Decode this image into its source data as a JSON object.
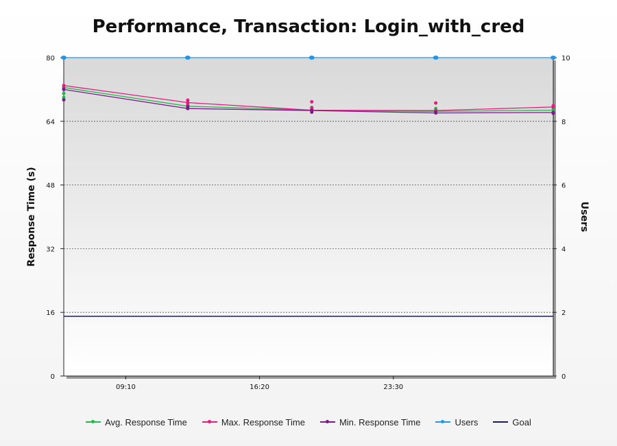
{
  "chart_data": {
    "type": "line",
    "title": "Performance, Transaction: Login_with_cred",
    "xlabel": "",
    "ylabel": "Response Time (s)",
    "y2label": "Users",
    "x_ticks": [
      "09:10",
      "16:20",
      "23:30"
    ],
    "x_tick_positions": [
      1.65,
      3.7,
      5.75
    ],
    "xlim": [
      0.7,
      8.2
    ],
    "ylim": [
      0,
      80
    ],
    "y_ticks": [
      0,
      16,
      32,
      48,
      64,
      80
    ],
    "y2lim": [
      0,
      10
    ],
    "y2_ticks": [
      0,
      2,
      4,
      6,
      8,
      10
    ],
    "grid": true,
    "legend_position": "bottom",
    "series": [
      {
        "name": "Avg. Response Time",
        "axis": "left",
        "color": "#22b84a",
        "points": [
          {
            "x": 0.7,
            "y": 72.5
          },
          {
            "x": 2.6,
            "y": 67.8
          },
          {
            "x": 4.5,
            "y": 66.8
          },
          {
            "x": 6.4,
            "y": 66.5
          },
          {
            "x": 8.2,
            "y": 66.8
          }
        ],
        "extra_markers": [
          {
            "x": 0.7,
            "y": 71.0
          },
          {
            "x": 0.7,
            "y": 70.0
          },
          {
            "x": 2.6,
            "y": 68.5
          },
          {
            "x": 4.5,
            "y": 67.5
          },
          {
            "x": 6.4,
            "y": 67.2
          },
          {
            "x": 8.2,
            "y": 67.3
          }
        ]
      },
      {
        "name": "Max. Response Time",
        "axis": "left",
        "color": "#e5197e",
        "points": [
          {
            "x": 0.7,
            "y": 73.0
          },
          {
            "x": 2.6,
            "y": 68.7
          },
          {
            "x": 4.5,
            "y": 66.8
          },
          {
            "x": 6.4,
            "y": 66.7
          },
          {
            "x": 8.2,
            "y": 67.6
          }
        ],
        "extra_markers": [
          {
            "x": 0.7,
            "y": 72.3
          },
          {
            "x": 2.6,
            "y": 69.3
          },
          {
            "x": 2.6,
            "y": 68.0
          },
          {
            "x": 4.5,
            "y": 68.9
          },
          {
            "x": 4.5,
            "y": 67.3
          },
          {
            "x": 6.4,
            "y": 68.6
          },
          {
            "x": 8.2,
            "y": 67.9
          }
        ]
      },
      {
        "name": "Min. Response Time",
        "axis": "left",
        "color": "#7a1b8c",
        "points": [
          {
            "x": 0.7,
            "y": 72.0
          },
          {
            "x": 2.6,
            "y": 67.2
          },
          {
            "x": 4.5,
            "y": 66.7
          },
          {
            "x": 6.4,
            "y": 66.1
          },
          {
            "x": 8.2,
            "y": 66.2
          }
        ],
        "extra_markers": [
          {
            "x": 0.7,
            "y": 69.4
          },
          {
            "x": 2.6,
            "y": 67.6
          },
          {
            "x": 4.5,
            "y": 66.3
          },
          {
            "x": 6.4,
            "y": 66.3
          },
          {
            "x": 8.2,
            "y": 66.0
          }
        ]
      },
      {
        "name": "Users",
        "axis": "right",
        "color": "#2196e8",
        "points": [
          {
            "x": 0.7,
            "y": 10
          },
          {
            "x": 2.6,
            "y": 10
          },
          {
            "x": 4.5,
            "y": 10
          },
          {
            "x": 6.4,
            "y": 10
          },
          {
            "x": 8.2,
            "y": 10
          }
        ]
      },
      {
        "name": "Goal",
        "axis": "left",
        "color": "#1a1a5c",
        "points": [
          {
            "x": 0.7,
            "y": 15
          },
          {
            "x": 8.2,
            "y": 15
          }
        ]
      }
    ]
  }
}
